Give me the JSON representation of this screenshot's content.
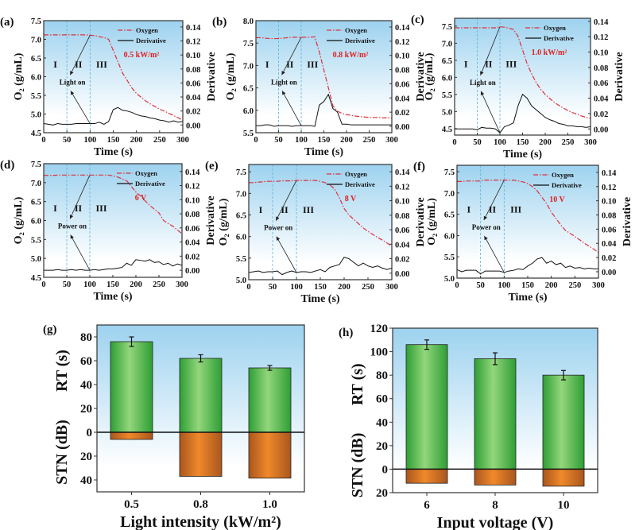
{
  "chart_data": [
    {
      "type": "line",
      "panel": "(a)",
      "condition": "0.5 kW/m²",
      "event": "Light on",
      "regions": [
        "I",
        "II",
        "III"
      ],
      "legend": [
        "Oxygen",
        "Derivative"
      ],
      "xlabel": "Time (s)",
      "ylabel": "O₂ (g/mL)",
      "y2label": "Derivative",
      "xlim": [
        0,
        300
      ],
      "xticks": [
        "0",
        "50",
        "100",
        "150",
        "200",
        "250",
        "300"
      ],
      "ylim": [
        4.5,
        7.5
      ],
      "yticks": [
        "4.5",
        "5.0",
        "5.5",
        "6.0",
        "6.5",
        "7.0",
        "7.5"
      ],
      "y2lim": [
        -0.011,
        0.149
      ],
      "y2ticks": [
        "0.00",
        "0.02",
        "0.04",
        "0.06",
        "0.08",
        "0.10",
        "0.12",
        "0.14"
      ],
      "x": [
        0,
        10,
        20,
        30,
        40,
        50,
        60,
        70,
        80,
        90,
        100,
        110,
        120,
        130,
        140,
        150,
        160,
        170,
        180,
        190,
        200,
        210,
        220,
        230,
        240,
        250,
        260,
        270,
        280,
        290,
        300
      ],
      "oxygen": [
        7.12,
        7.12,
        7.12,
        7.12,
        7.12,
        7.12,
        7.12,
        7.12,
        7.12,
        7.12,
        7.11,
        7.1,
        7.07,
        7.05,
        7.0,
        6.7,
        6.4,
        6.1,
        5.9,
        5.7,
        5.55,
        5.45,
        5.35,
        5.27,
        5.2,
        5.13,
        5.08,
        5.02,
        4.96,
        4.9,
        4.83
      ],
      "derivative": [
        0.002,
        0.001,
        0.0,
        0.002,
        0.001,
        0.001,
        0.001,
        0.002,
        0.002,
        0.002,
        0.002,
        0.002,
        0.004,
        0.001,
        0.005,
        0.022,
        0.025,
        0.021,
        0.02,
        0.018,
        0.015,
        0.013,
        0.012,
        0.01,
        0.009,
        0.007,
        0.006,
        0.004,
        0.006,
        0.004,
        0.005
      ]
    },
    {
      "type": "line",
      "panel": "(b)",
      "condition": "0.8 kW/m²",
      "event": "Light on",
      "regions": [
        "I",
        "II",
        "III"
      ],
      "legend": [
        "Oxygen",
        "Derivative"
      ],
      "xlabel": "Time (s)",
      "ylabel": "O₂ (g/mL)",
      "y2label": "Derivative",
      "xlim": [
        0,
        300
      ],
      "xticks": [
        "0",
        "50",
        "100",
        "150",
        "200",
        "250",
        "300"
      ],
      "ylim": [
        5.5,
        8.0
      ],
      "yticks": [
        "5.5",
        "6.0",
        "6.5",
        "7.0",
        "7.5",
        "8.0"
      ],
      "y2lim": [
        -0.009,
        0.149
      ],
      "y2ticks": [
        "0.00",
        "0.02",
        "0.04",
        "0.06",
        "0.08",
        "0.10",
        "0.12",
        "0.14"
      ],
      "x": [
        0,
        10,
        20,
        30,
        40,
        50,
        60,
        70,
        80,
        90,
        100,
        110,
        120,
        130,
        140,
        150,
        160,
        170,
        180,
        190,
        200,
        210,
        220,
        230,
        240,
        250,
        260,
        270,
        280,
        290,
        300
      ],
      "oxygen": [
        7.62,
        7.62,
        7.61,
        7.6,
        7.6,
        7.6,
        7.61,
        7.62,
        7.63,
        7.63,
        7.63,
        7.63,
        7.63,
        7.64,
        7.3,
        6.9,
        6.5,
        6.1,
        5.98,
        5.93,
        5.9,
        5.89,
        5.87,
        5.86,
        5.85,
        5.84,
        5.84,
        5.84,
        5.83,
        5.83,
        5.83
      ],
      "derivative": [
        0.001,
        0.001,
        0.002,
        0.002,
        0.0,
        0.001,
        0.001,
        0.001,
        0.0,
        0.001,
        0.001,
        0.001,
        0.001,
        0.0,
        0.03,
        0.035,
        0.045,
        0.025,
        0.02,
        0.003,
        0.003,
        0.002,
        0.002,
        0.002,
        0.002,
        0.002,
        0.002,
        0.002,
        0.002,
        0.002,
        0.002
      ]
    },
    {
      "type": "line",
      "panel": "(c)",
      "condition": "1.0 kW/m²",
      "event": "Light on",
      "regions": [
        "I",
        "II",
        "III"
      ],
      "legend": [
        "Oxygen",
        "Derivative"
      ],
      "xlabel": "Time (s)",
      "ylabel": "O₂ (g/mL)",
      "y2label": "Derivative",
      "xlim": [
        0,
        300
      ],
      "xticks": [
        "0",
        "50",
        "100",
        "150",
        "200",
        "250",
        "300"
      ],
      "ylim": [
        4.31,
        7.73
      ],
      "yticks": [
        "4.5",
        "5.0",
        "5.5",
        "6.0",
        "6.5",
        "7.0",
        "7.5"
      ],
      "y2lim": [
        -0.008,
        0.144
      ],
      "y2ticks": [
        "0.00",
        "0.02",
        "0.04",
        "0.06",
        "0.08",
        "0.10",
        "0.12",
        "0.14"
      ],
      "x": [
        0,
        10,
        20,
        30,
        40,
        50,
        60,
        70,
        80,
        90,
        100,
        110,
        120,
        130,
        140,
        150,
        160,
        170,
        180,
        190,
        200,
        210,
        220,
        230,
        240,
        250,
        260,
        270,
        280,
        290,
        300
      ],
      "oxygen": [
        7.45,
        7.45,
        7.45,
        7.45,
        7.45,
        7.45,
        7.45,
        7.45,
        7.45,
        7.45,
        7.48,
        7.47,
        7.44,
        7.4,
        7.2,
        6.8,
        6.4,
        6.1,
        5.85,
        5.65,
        5.5,
        5.38,
        5.27,
        5.18,
        5.1,
        5.03,
        4.97,
        4.92,
        4.87,
        4.83,
        4.8
      ],
      "derivative": [
        0.0,
        0.0,
        0.0,
        0.0,
        0.0,
        -0.001,
        0.002,
        0.001,
        0.001,
        0.0,
        -0.005,
        0.003,
        0.005,
        0.008,
        0.03,
        0.045,
        0.04,
        0.03,
        0.025,
        0.02,
        0.015,
        0.012,
        0.01,
        0.007,
        0.006,
        0.004,
        0.004,
        0.003,
        0.003,
        0.002,
        0.003
      ]
    },
    {
      "type": "line",
      "panel": "(d)",
      "condition": "6 V",
      "event": "Power on",
      "regions": [
        "I",
        "II",
        "III"
      ],
      "legend": [
        "Oxygen",
        "Derivative"
      ],
      "xlabel": "Time (s)",
      "ylabel": "O₂ (g/mL)",
      "y2label": "Derivative",
      "xlim": [
        0,
        300
      ],
      "xticks": [
        "0",
        "50",
        "100",
        "150",
        "200",
        "250",
        "300"
      ],
      "ylim": [
        4.5,
        7.5
      ],
      "yticks": [
        "4.5",
        "5.0",
        "5.5",
        "6.0",
        "6.5",
        "7.0",
        "7.5"
      ],
      "y2lim": [
        -0.01,
        0.151
      ],
      "y2ticks": [
        "0.00",
        "0.02",
        "0.04",
        "0.06",
        "0.08",
        "0.10",
        "0.12",
        "0.14"
      ],
      "x": [
        0,
        10,
        20,
        30,
        40,
        50,
        60,
        70,
        80,
        90,
        100,
        110,
        120,
        130,
        140,
        150,
        160,
        170,
        180,
        190,
        200,
        210,
        220,
        230,
        240,
        250,
        260,
        270,
        280,
        290,
        300
      ],
      "oxygen": [
        7.19,
        7.19,
        7.19,
        7.2,
        7.2,
        7.2,
        7.2,
        7.2,
        7.2,
        7.2,
        7.2,
        7.2,
        7.2,
        7.2,
        7.2,
        7.18,
        7.15,
        7.1,
        7.05,
        6.9,
        6.75,
        6.65,
        6.52,
        6.4,
        6.3,
        6.2,
        6.0,
        5.92,
        5.85,
        5.75,
        5.65
      ],
      "derivative": [
        0.0,
        0.0,
        0.0,
        0.001,
        0.0,
        0.0,
        0.001,
        0.0,
        0.001,
        0.0,
        0.0,
        0.001,
        0.0,
        0.001,
        0.002,
        0.002,
        0.003,
        0.004,
        0.01,
        0.007,
        0.015,
        0.014,
        0.013,
        0.015,
        0.011,
        0.012,
        0.008,
        0.01,
        0.006,
        0.009,
        0.007
      ]
    },
    {
      "type": "line",
      "panel": "(e)",
      "condition": "8 V",
      "event": "Power on",
      "regions": [
        "I",
        "II",
        "III"
      ],
      "legend": [
        "Oxygen",
        "Derivative"
      ],
      "xlabel": "Time (s)",
      "ylabel": "O₂ (g/mL)",
      "y2label": "Derivative",
      "xlim": [
        0,
        300
      ],
      "xticks": [
        "0",
        "50",
        "100",
        "150",
        "200",
        "250",
        "300"
      ],
      "ylim": [
        5.0,
        7.67
      ],
      "yticks": [
        "5.0",
        "5.5",
        "6.0",
        "6.5",
        "7.0",
        "7.5"
      ],
      "y2lim": [
        -0.009,
        0.15
      ],
      "y2ticks": [
        "0.00",
        "0.02",
        "0.04",
        "0.06",
        "0.08",
        "0.10",
        "0.12",
        "0.14"
      ],
      "x": [
        0,
        10,
        20,
        30,
        40,
        50,
        60,
        70,
        80,
        90,
        100,
        110,
        120,
        130,
        140,
        150,
        160,
        170,
        180,
        190,
        200,
        210,
        220,
        230,
        240,
        250,
        260,
        270,
        280,
        290,
        300
      ],
      "oxygen": [
        7.25,
        7.25,
        7.26,
        7.27,
        7.28,
        7.28,
        7.28,
        7.29,
        7.29,
        7.29,
        7.3,
        7.3,
        7.3,
        7.3,
        7.3,
        7.28,
        7.25,
        7.2,
        7.1,
        6.9,
        6.65,
        6.5,
        6.4,
        6.3,
        6.2,
        6.12,
        6.05,
        5.98,
        5.92,
        5.85,
        5.78
      ],
      "derivative": [
        0.001,
        0.002,
        0.003,
        0.001,
        0.002,
        0.002,
        0.003,
        -0.002,
        0.001,
        0.003,
        0.001,
        0.002,
        0.002,
        0.001,
        0.003,
        0.005,
        0.002,
        0.008,
        0.01,
        0.012,
        0.022,
        0.02,
        0.015,
        0.01,
        0.014,
        0.01,
        0.008,
        0.01,
        0.007,
        0.005,
        0.007
      ]
    },
    {
      "type": "line",
      "panel": "(f)",
      "condition": "10 V",
      "event": "Power on",
      "regions": [
        "I",
        "II",
        "III"
      ],
      "legend": [
        "Oxygen",
        "Derivative"
      ],
      "xlabel": "Time (s)",
      "ylabel": "O₂ (g/mL)",
      "y2label": "Derivative",
      "xlim": [
        0,
        300
      ],
      "xticks": [
        "0",
        "50",
        "100",
        "150",
        "200",
        "250",
        "300"
      ],
      "ylim": [
        5.0,
        7.65
      ],
      "yticks": [
        "5.0",
        "5.5",
        "6.0",
        "6.5",
        "7.0",
        "7.5"
      ],
      "y2lim": [
        -0.009,
        0.15
      ],
      "y2ticks": [
        "0.00",
        "0.02",
        "0.04",
        "0.06",
        "0.08",
        "0.10",
        "0.12",
        "0.14"
      ],
      "x": [
        0,
        10,
        20,
        30,
        40,
        50,
        60,
        70,
        80,
        90,
        100,
        110,
        120,
        130,
        140,
        150,
        160,
        170,
        180,
        190,
        200,
        210,
        220,
        230,
        240,
        250,
        260,
        270,
        280,
        290,
        300
      ],
      "oxygen": [
        7.27,
        7.27,
        7.28,
        7.28,
        7.28,
        7.28,
        7.3,
        7.3,
        7.3,
        7.3,
        7.3,
        7.3,
        7.3,
        7.28,
        7.26,
        7.22,
        7.15,
        7.05,
        6.9,
        6.75,
        6.55,
        6.4,
        6.25,
        6.12,
        6.05,
        5.98,
        5.9,
        5.82,
        5.75,
        5.68,
        5.6
      ],
      "derivative": [
        0.003,
        0.0,
        0.002,
        0.002,
        0.002,
        -0.003,
        0.001,
        0.001,
        0.001,
        0.001,
        -0.001,
        0.001,
        0.002,
        0.004,
        0.003,
        0.008,
        0.012,
        0.018,
        0.02,
        0.012,
        0.015,
        0.01,
        0.012,
        0.006,
        0.008,
        0.005,
        0.006,
        0.004,
        0.005,
        0.004,
        0.004
      ]
    },
    {
      "type": "bar",
      "panel": "(g)",
      "xlabel": "Light intensity (kW/m²)",
      "ylabel_top": "RT (s)",
      "ylabel_bottom": "STN (dB)",
      "categories": [
        "0.5",
        "0.8",
        "1.0"
      ],
      "rt": [
        76,
        62,
        54
      ],
      "rt_err": [
        4,
        3,
        2
      ],
      "stn": [
        6,
        37,
        38.5
      ],
      "ylim": [
        -50,
        90
      ],
      "yticks_top": [
        "0",
        "20",
        "40",
        "60",
        "80"
      ],
      "yticks_bottom": [
        "20",
        "40"
      ]
    },
    {
      "type": "bar",
      "panel": "(h)",
      "xlabel": "Input voltage (V)",
      "ylabel_top": "RT (s)",
      "ylabel_bottom": "STN (dB)",
      "categories": [
        "6",
        "8",
        "10"
      ],
      "rt": [
        106,
        94,
        80
      ],
      "rt_err": [
        4,
        5,
        4
      ],
      "stn": [
        12,
        13.5,
        14.5
      ],
      "ylim": [
        -20,
        120
      ],
      "yticks_top": [
        "0",
        "20",
        "40",
        "60",
        "80",
        "100",
        "120"
      ],
      "yticks_bottom": [
        "20"
      ]
    }
  ],
  "colors": {
    "oxygen": "#e0303a",
    "derivative": "#111111",
    "condition": "#e02020",
    "guide": "#5bb5d8",
    "bg_top": "#9dd2ef",
    "green": "#3aa83a",
    "green_light": "#8fd47a",
    "orange": "#e8791e",
    "orange_dark": "#a9561e"
  }
}
